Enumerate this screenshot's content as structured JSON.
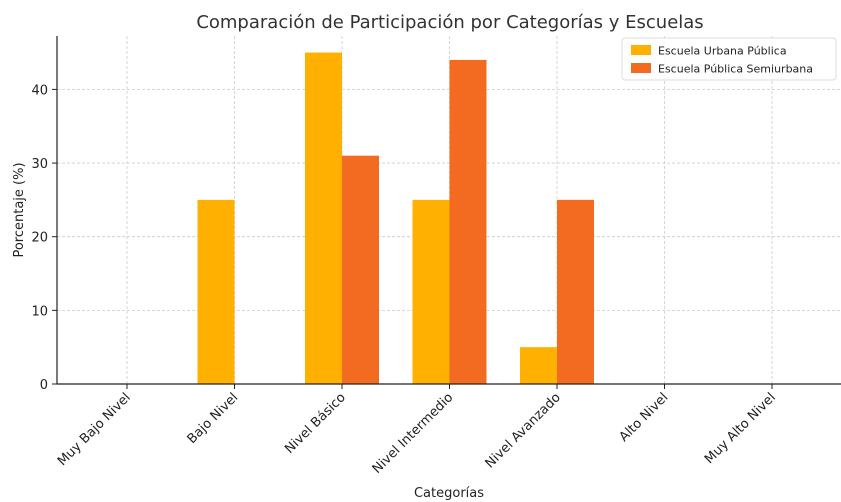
{
  "chart_data": {
    "type": "bar",
    "title": "Comparación de Participación por Categorías y Escuelas",
    "xlabel": "Categorías",
    "ylabel": "Porcentaje (%)",
    "categories": [
      "Muy Bajo Nivel",
      "Bajo Nivel",
      "Nivel Básico",
      "Nivel Intermedio",
      "Nivel Avanzado",
      "Alto Nivel",
      "Muy Alto Nivel"
    ],
    "series": [
      {
        "name": "Escuela Urbana Pública",
        "values": [
          0,
          25,
          45,
          25,
          5,
          0,
          0
        ],
        "color": "#FFB000"
      },
      {
        "name": "Escuela Pública Semiurbana",
        "values": [
          0,
          0,
          31,
          44,
          25,
          0,
          0
        ],
        "color": "#F26B21"
      }
    ],
    "ylim": [
      0,
      47.25
    ],
    "yticks": [
      0,
      10,
      20,
      30,
      40
    ],
    "grid": true,
    "legend_position": "top-right"
  }
}
